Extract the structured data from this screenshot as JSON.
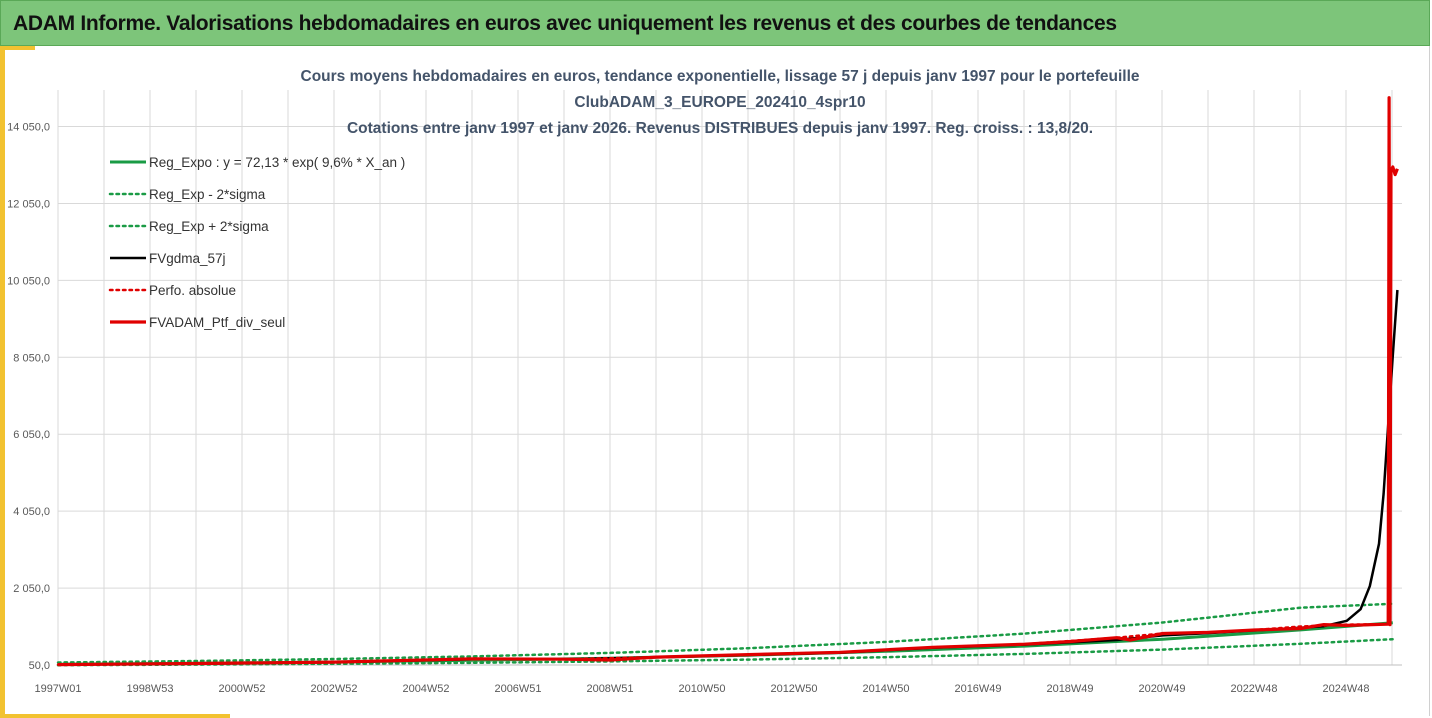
{
  "header": {
    "title": "ADAM Informe. Valorisations hebdomadaires en euros avec uniquement les revenus et des courbes de tendances"
  },
  "colors": {
    "header_bg": "#7dc57a",
    "accent": "#f2c230",
    "green": "#1a9b45",
    "black": "#000000",
    "red": "#e00000",
    "grid": "#d9d9d9"
  },
  "chart_data": {
    "type": "line",
    "title_lines": [
      "Cours moyens hebdomadaires  en euros, tendance exponentielle, lissage 57 j depuis janv 1997 pour le portefeuille",
      "ClubADAM_3_EUROPE_202410_4spr10",
      "Cotations entre janv 1997 et janv 2026. Revenus DISTRIBUES depuis janv 1997. Reg. croiss. : 13,8/20."
    ],
    "x_tick_labels": [
      "1997W01",
      "1998W53",
      "2000W52",
      "2002W52",
      "2004W52",
      "2006W51",
      "2008W51",
      "2010W50",
      "2012W50",
      "2014W50",
      "2016W49",
      "2018W49",
      "2020W49",
      "2022W48",
      "2024W48"
    ],
    "y_tick_labels": [
      "50,0",
      "2 050,0",
      "4 050,0",
      "6 050,0",
      "8 050,0",
      "10 050,0",
      "12 050,0",
      "14 050,0"
    ],
    "y_ticks": [
      50,
      2050,
      4050,
      6050,
      8050,
      10050,
      12050,
      14050
    ],
    "xlim": [
      1997.0,
      2026.2
    ],
    "ylim": [
      50,
      15000
    ],
    "grid": true,
    "legend_position": "top-left",
    "series": [
      {
        "name": "Reg_Expo : y = 72,13 * exp( 9,6% *  X_an )",
        "style": "solid-green",
        "x": [
          1997,
          2000,
          2003,
          2006,
          2009,
          2012,
          2015,
          2018,
          2021,
          2024,
          2026
        ],
        "y": [
          72,
          96,
          128,
          171,
          228,
          304,
          406,
          541,
          722,
          963,
          1150
        ]
      },
      {
        "name": "Reg_Exp - 2*sigma",
        "style": "dotted-green",
        "x": [
          1997,
          2000,
          2003,
          2006,
          2009,
          2012,
          2015,
          2018,
          2021,
          2024,
          2026
        ],
        "y": [
          45,
          60,
          80,
          107,
          143,
          190,
          254,
          338,
          451,
          602,
          720
        ]
      },
      {
        "name": "Reg_Exp + 2*sigma",
        "style": "dotted-green",
        "x": [
          1997,
          2000,
          2003,
          2006,
          2009,
          2012,
          2015,
          2018,
          2021,
          2024,
          2026
        ],
        "y": [
          115,
          154,
          205,
          274,
          365,
          486,
          650,
          866,
          1155,
          1540,
          1640
        ]
      },
      {
        "name": "FVgdma_57j",
        "style": "solid-black",
        "x": [
          1997,
          2000,
          2003,
          2006,
          2008,
          2010,
          2012,
          2014,
          2016,
          2018,
          2020,
          2021,
          2022,
          2023,
          2024,
          2024.5,
          2025,
          2025.3,
          2025.5,
          2025.7,
          2025.8,
          2025.9,
          2026.0,
          2026.1
        ],
        "y": [
          60,
          85,
          120,
          200,
          200,
          250,
          310,
          370,
          500,
          580,
          700,
          820,
          880,
          950,
          1020,
          1060,
          1200,
          1500,
          2100,
          3200,
          4500,
          6300,
          8100,
          9800
        ]
      },
      {
        "name": "Perfo. absolue",
        "style": "dotted-red",
        "x": [
          1997,
          2000,
          2003,
          2006,
          2008,
          2010,
          2012,
          2014,
          2016,
          2018,
          2020,
          2021,
          2022,
          2023,
          2024,
          2025,
          2025.9
        ],
        "y": [
          60,
          90,
          125,
          210,
          200,
          255,
          320,
          380,
          510,
          590,
          760,
          870,
          900,
          960,
          1050,
          1100,
          1110
        ]
      },
      {
        "name": "FVADAM_Ptf_div_seul",
        "style": "solid-red",
        "x": [
          1997,
          2000,
          2003,
          2006,
          2008,
          2009,
          2010,
          2012,
          2014,
          2016,
          2018,
          2019,
          2020,
          2020.3,
          2021,
          2022,
          2023,
          2023.5,
          2024,
          2024.5,
          2025,
          2025.9,
          2025.92,
          2025.94,
          2025.96,
          2026.0,
          2026.05,
          2026.1
        ],
        "y": [
          60,
          90,
          125,
          210,
          200,
          180,
          255,
          320,
          380,
          510,
          590,
          660,
          760,
          700,
          870,
          900,
          960,
          980,
          1000,
          1100,
          1080,
          1110,
          14800,
          1100,
          12900,
          13000,
          12800,
          12950
        ]
      }
    ]
  }
}
